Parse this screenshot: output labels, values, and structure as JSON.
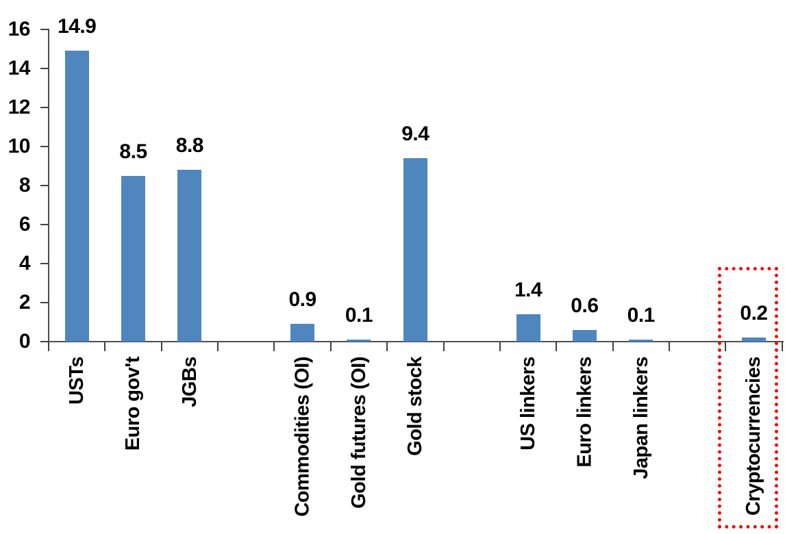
{
  "chart_data": {
    "type": "bar",
    "title": "",
    "xlabel": "",
    "ylabel": "",
    "categories": [
      "USTs",
      "Euro gov't",
      "JGBs",
      "Commodities (OI)",
      "Gold futures (OI)",
      "Gold stock",
      "US linkers",
      "Euro linkers",
      "Japan linkers",
      "Cryptocurrencies"
    ],
    "values": [
      14.9,
      8.5,
      8.8,
      0.9,
      0.1,
      9.4,
      1.4,
      0.6,
      0.1,
      0.2
    ],
    "data_labels": [
      "14.9",
      "8.5",
      "8.8",
      "0.9",
      "0.1",
      "9.4",
      "1.4",
      "0.6",
      "0.1",
      "0.2"
    ],
    "groups": [
      [
        "USTs",
        "Euro gov't",
        "JGBs"
      ],
      [
        "Commodities (OI)",
        "Gold futures (OI)",
        "Gold stock"
      ],
      [
        "US linkers",
        "Euro linkers",
        "Japan linkers"
      ],
      [
        "Cryptocurrencies"
      ]
    ],
    "y_ticks": [
      "0",
      "2",
      "4",
      "6",
      "8",
      "10",
      "12",
      "14",
      "16"
    ],
    "ylim": [
      0,
      16
    ],
    "grid": "off",
    "legend": "none",
    "bar_color": "#4f86bd",
    "axis_color": "#4d4d4d",
    "text_color": "#000000",
    "highlight": {
      "category": "Cryptocurrencies",
      "shape": "dotted-rectangle",
      "color": "#ff0000"
    }
  }
}
